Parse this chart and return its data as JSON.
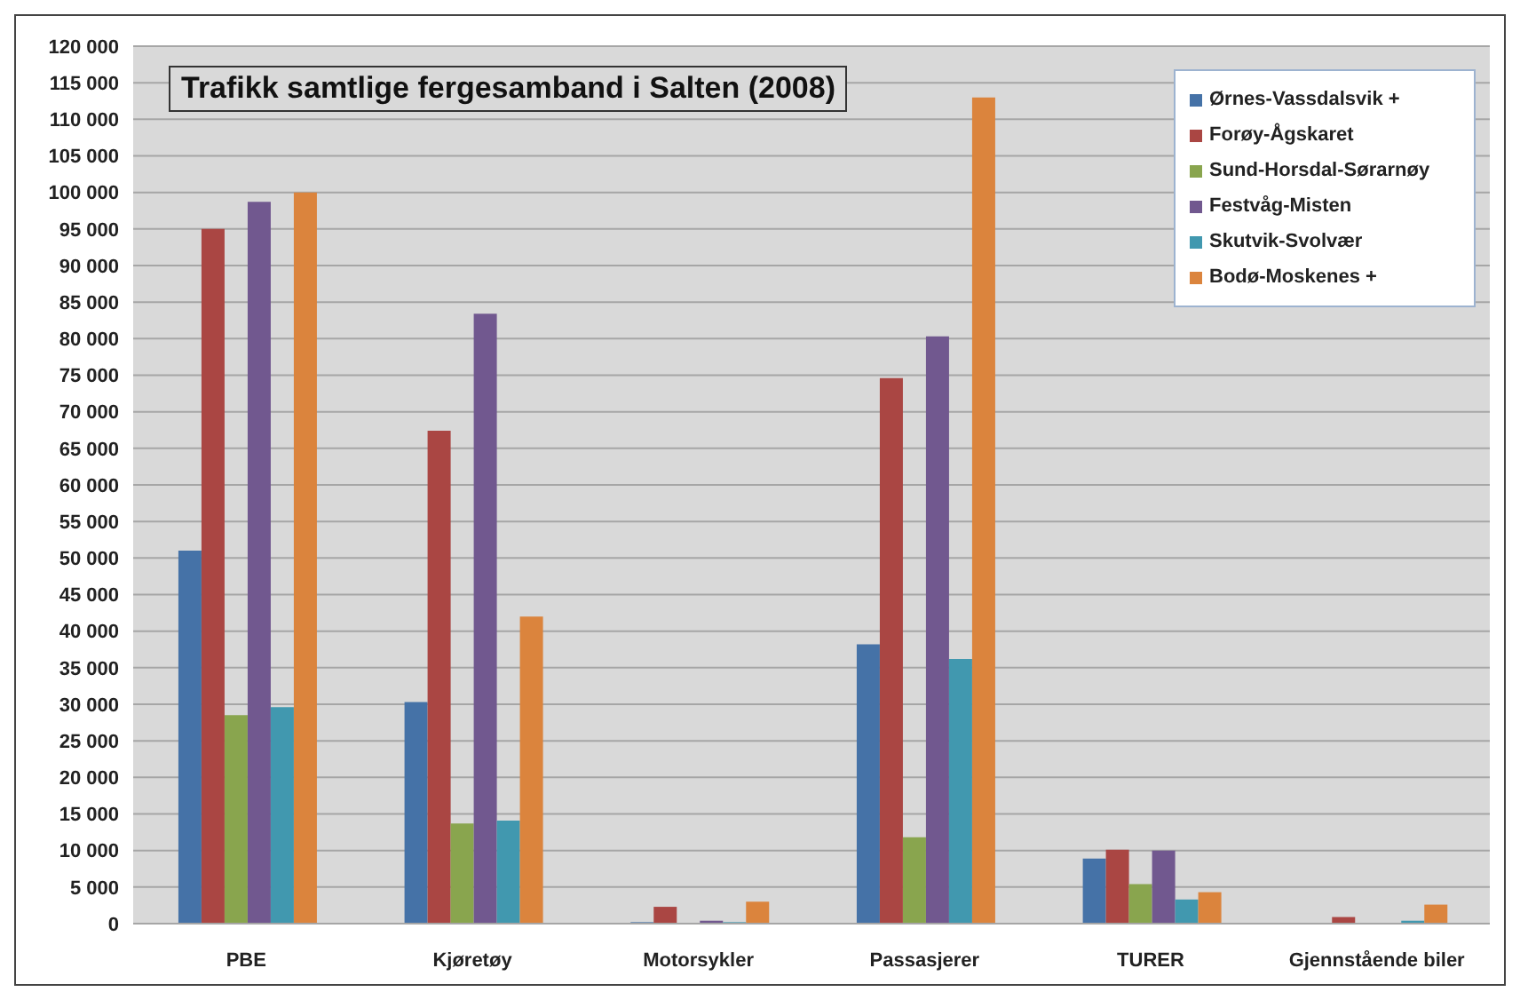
{
  "chart_data": {
    "type": "bar",
    "title": "Trafikk samtlige fergesamband i Salten (2008)",
    "categories": [
      "PBE",
      "Kjøretøy",
      "Motorsykler",
      "Passasjerer",
      "TURER",
      "Gjennstående biler"
    ],
    "series": [
      {
        "name": "Ørnes-Vassdalsvik +",
        "color": "#4572a7",
        "values": [
          51000,
          30300,
          200,
          38200,
          8900,
          0
        ]
      },
      {
        "name": "Forøy-Ågskaret",
        "color": "#aa4643",
        "values": [
          95000,
          67400,
          2300,
          74600,
          10100,
          900
        ]
      },
      {
        "name": "Sund-Horsdal-Sørarnøy",
        "color": "#89a54e",
        "values": [
          28500,
          13700,
          0,
          11800,
          5400,
          0
        ]
      },
      {
        "name": "Festvåg-Misten",
        "color": "#71588f",
        "values": [
          98700,
          83400,
          400,
          80300,
          10000,
          0
        ]
      },
      {
        "name": "Skutvik-Svolvær",
        "color": "#4198af",
        "values": [
          29600,
          14100,
          200,
          36200,
          3300,
          400
        ]
      },
      {
        "name": "Bodø-Moskenes +",
        "color": "#db843d",
        "values": [
          100000,
          42000,
          3000,
          113000,
          4300,
          2600
        ]
      }
    ],
    "ylim": [
      0,
      120000
    ],
    "yticks": [
      0,
      {
        "value": 5000,
        "label": "5 000"
      },
      {
        "value": 10000,
        "label": "10 000"
      },
      {
        "value": 15000,
        "label": "15 000"
      },
      {
        "value": 20000,
        "label": "20 000"
      },
      {
        "value": 25000,
        "label": "25 000"
      },
      {
        "value": 30000,
        "label": "30 000"
      },
      {
        "value": 35000,
        "label": "35 000"
      },
      {
        "value": 40000,
        "label": "40 000"
      },
      {
        "value": 45000,
        "label": "45 000"
      },
      {
        "value": 50000,
        "label": "50 000"
      },
      {
        "value": 55000,
        "label": "55 000"
      },
      {
        "value": 60000,
        "label": "60 000"
      },
      {
        "value": 65000,
        "label": "65 000"
      },
      {
        "value": 70000,
        "label": "70 000"
      },
      {
        "value": 75000,
        "label": "75 000"
      },
      {
        "value": 80000,
        "label": "80 000"
      },
      {
        "value": 85000,
        "label": "85 000"
      },
      {
        "value": 90000,
        "label": "90 000"
      },
      {
        "value": 95000,
        "label": "95 000"
      },
      {
        "value": 100000,
        "label": "100 000"
      },
      {
        "value": 105000,
        "label": "105 000"
      },
      {
        "value": 110000,
        "label": "110 000"
      },
      {
        "value": 115000,
        "label": "115 000"
      },
      {
        "value": 120000,
        "label": "120 000"
      }
    ],
    "grid": "y",
    "legend": "top right"
  }
}
